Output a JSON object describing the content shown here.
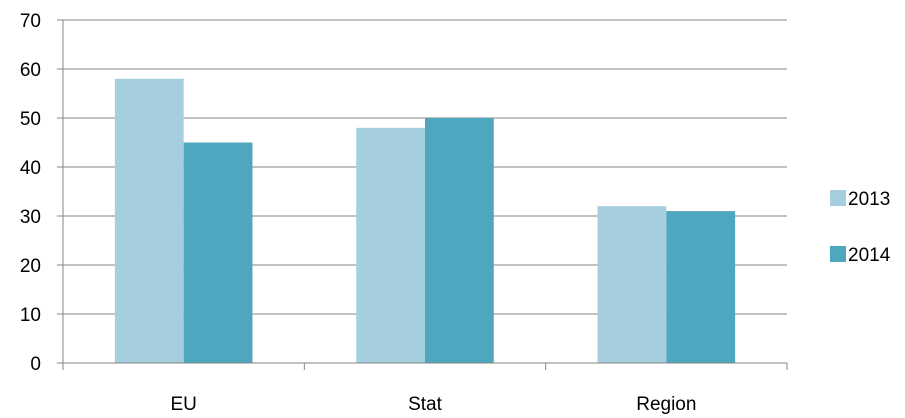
{
  "chart_data": {
    "type": "bar",
    "categories": [
      "EU",
      "Stat",
      "Region"
    ],
    "series": [
      {
        "name": "2013",
        "values": [
          58,
          48,
          32
        ],
        "color": "#a5cfdf"
      },
      {
        "name": "2014",
        "values": [
          45,
          50,
          31
        ],
        "color": "#4fa7bf"
      }
    ],
    "ylim": [
      0,
      70
    ],
    "yticks": [
      0,
      10,
      20,
      30,
      40,
      50,
      60,
      70
    ],
    "grid": true,
    "legend": "right",
    "title": "",
    "xlabel": "",
    "ylabel": ""
  }
}
